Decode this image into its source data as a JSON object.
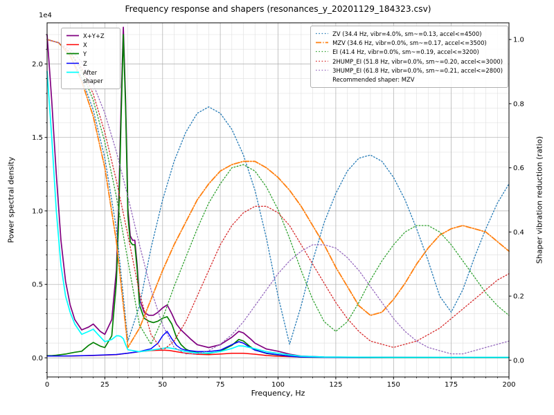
{
  "figure": {
    "title": "Frequency response and shapers (resonances_y_20201129_184323.csv)",
    "xlabel": "Frequency, Hz",
    "ylabel_left": "Power spectral density",
    "ylabel_right": "Shaper vibration reduction (ratio)",
    "left_axis_offset_text": "1e4"
  },
  "chart_data": {
    "type": "line",
    "x_range": [
      0,
      200
    ],
    "x_ticks": [
      0,
      25,
      50,
      75,
      100,
      125,
      150,
      175,
      200
    ],
    "x_tick_labels": [
      "0",
      "25",
      "50",
      "75",
      "100",
      "125",
      "150",
      "175",
      "200"
    ],
    "left_ylim": [
      -1300,
      22800
    ],
    "left_yticks": [
      0,
      5000,
      10000,
      15000,
      20000
    ],
    "left_ytick_labels": [
      "0.0",
      "0.5",
      "1.0",
      "1.5",
      "2.0"
    ],
    "right_ylim": [
      -0.052,
      1.052
    ],
    "right_yticks": [
      0.0,
      0.2,
      0.4,
      0.6,
      0.8,
      1.0
    ],
    "right_ytick_labels": [
      "0.0",
      "0.2",
      "0.4",
      "0.6",
      "0.8",
      "1.0"
    ],
    "grid": {
      "major": true,
      "minor": true,
      "x_minor_step": 5,
      "left_minor_step": 1000,
      "major_color": "#ababab",
      "minor_color": "#dedede"
    },
    "recommended_note": "Recommended shaper: MZV",
    "psd_series": [
      {
        "name": "sum",
        "label": "X+Y+Z",
        "color": "#800080",
        "style": "solid",
        "width": 1.7,
        "axis": "left",
        "x": [
          0,
          2,
          4,
          6,
          8,
          10,
          12,
          15,
          18,
          20,
          23,
          25,
          28,
          30,
          31,
          32,
          33,
          34,
          35,
          36,
          37,
          38,
          39,
          40,
          42,
          44,
          46,
          48,
          50,
          52,
          54,
          56,
          58,
          60,
          62,
          65,
          70,
          75,
          80,
          83,
          85,
          88,
          90,
          95,
          100,
          105,
          110,
          120,
          140,
          170,
          200
        ],
        "y": [
          22000,
          17500,
          12500,
          8000,
          5200,
          3600,
          2600,
          1900,
          2100,
          2300,
          1800,
          1600,
          2600,
          6000,
          10500,
          17000,
          22500,
          17500,
          10200,
          8300,
          8000,
          8000,
          6300,
          4000,
          3100,
          2900,
          2900,
          3100,
          3400,
          3600,
          3000,
          2300,
          1900,
          1600,
          1300,
          900,
          700,
          900,
          1400,
          1800,
          1700,
          1300,
          1000,
          600,
          450,
          250,
          120,
          60,
          40,
          30,
          30
        ]
      },
      {
        "name": "x",
        "label": "X",
        "color": "#ff0000",
        "style": "solid",
        "width": 1.5,
        "axis": "left",
        "x": [
          0,
          10,
          20,
          30,
          35,
          40,
          45,
          50,
          53,
          56,
          60,
          65,
          70,
          75,
          80,
          85,
          90,
          95,
          100,
          110,
          120,
          150,
          200
        ],
        "y": [
          120,
          120,
          160,
          220,
          320,
          420,
          500,
          520,
          500,
          420,
          320,
          240,
          220,
          260,
          310,
          310,
          250,
          160,
          110,
          60,
          40,
          25,
          25
        ]
      },
      {
        "name": "y",
        "label": "Y",
        "color": "#008000",
        "style": "solid",
        "width": 1.7,
        "axis": "left",
        "x": [
          0,
          2,
          4,
          6,
          8,
          10,
          12,
          15,
          18,
          20,
          23,
          25,
          28,
          30,
          31,
          32,
          33,
          34,
          35,
          36,
          37,
          38,
          39,
          40,
          42,
          44,
          46,
          48,
          50,
          52,
          54,
          56,
          58,
          60,
          62,
          65,
          70,
          75,
          80,
          83,
          85,
          88,
          90,
          95,
          100,
          105,
          110,
          120,
          140,
          170,
          200
        ],
        "y": [
          150,
          150,
          180,
          220,
          260,
          320,
          380,
          450,
          850,
          1050,
          800,
          700,
          1500,
          5200,
          9500,
          16000,
          22000,
          17000,
          9700,
          7900,
          7700,
          7700,
          6000,
          3600,
          2700,
          2500,
          2400,
          2500,
          2700,
          2800,
          2300,
          1400,
          900,
          600,
          450,
          350,
          300,
          450,
          850,
          1250,
          1150,
          750,
          550,
          300,
          200,
          120,
          60,
          30,
          20,
          20,
          20
        ]
      },
      {
        "name": "z",
        "label": "Z",
        "color": "#0000ff",
        "style": "solid",
        "width": 1.5,
        "axis": "left",
        "x": [
          0,
          10,
          20,
          30,
          35,
          40,
          45,
          48,
          50,
          52,
          54,
          56,
          58,
          60,
          65,
          70,
          75,
          80,
          83,
          85,
          88,
          90,
          95,
          100,
          105,
          110,
          120,
          150,
          200
        ],
        "y": [
          120,
          130,
          170,
          230,
          320,
          430,
          620,
          1000,
          1500,
          1800,
          1300,
          850,
          620,
          520,
          430,
          430,
          520,
          900,
          1100,
          1000,
          700,
          520,
          320,
          210,
          110,
          60,
          35,
          25,
          25
        ]
      },
      {
        "name": "after-shaper",
        "label": "After shaper",
        "color": "#00ffff",
        "style": "solid",
        "width": 1.7,
        "axis": "left",
        "x": [
          0,
          2,
          4,
          6,
          8,
          10,
          12,
          15,
          18,
          20,
          22,
          25,
          28,
          30,
          31,
          32,
          33,
          34,
          35,
          40,
          45,
          50,
          52,
          55,
          60,
          65,
          70,
          75,
          80,
          83,
          85,
          90,
          95,
          100,
          105,
          110,
          120,
          150,
          200
        ],
        "y": [
          19500,
          15000,
          10000,
          6300,
          4200,
          3100,
          2300,
          1600,
          1800,
          1950,
          1600,
          1100,
          1250,
          1500,
          1500,
          1450,
          1300,
          900,
          550,
          420,
          520,
          640,
          700,
          620,
          430,
          330,
          330,
          430,
          640,
          820,
          800,
          620,
          420,
          310,
          200,
          110,
          60,
          35,
          35
        ]
      }
    ],
    "shaper_series": [
      {
        "name": "zv",
        "label": "ZV (34.4 Hz, vibr=4.0%, sm~=0.13, accel<=4500)",
        "color": "#1f77b4",
        "style": "dotted",
        "width": 1.3,
        "axis": "right",
        "x": [
          0,
          5,
          10,
          15,
          20,
          25,
          30,
          35,
          40,
          45,
          50,
          55,
          60,
          65,
          70,
          75,
          80,
          85,
          90,
          95,
          100,
          105,
          110,
          115,
          120,
          125,
          130,
          135,
          140,
          145,
          150,
          155,
          160,
          165,
          170,
          175,
          180,
          185,
          190,
          195,
          200
        ],
        "y": [
          1.0,
          0.99,
          0.95,
          0.88,
          0.78,
          0.63,
          0.41,
          0.06,
          0.17,
          0.35,
          0.5,
          0.62,
          0.71,
          0.77,
          0.79,
          0.77,
          0.72,
          0.64,
          0.53,
          0.38,
          0.2,
          0.05,
          0.17,
          0.31,
          0.43,
          0.52,
          0.59,
          0.63,
          0.64,
          0.62,
          0.57,
          0.5,
          0.41,
          0.31,
          0.2,
          0.15,
          0.22,
          0.32,
          0.41,
          0.49,
          0.55
        ]
      },
      {
        "name": "mzv",
        "label": "MZV (34.6 Hz, vibr=0.0%, sm~=0.17, accel<=3500)",
        "color": "#ff7f0e",
        "style": "dashdot",
        "width": 1.8,
        "axis": "right",
        "x": [
          0,
          5,
          10,
          15,
          20,
          25,
          30,
          35,
          40,
          45,
          50,
          55,
          60,
          65,
          70,
          75,
          80,
          85,
          90,
          95,
          100,
          105,
          110,
          115,
          120,
          125,
          130,
          135,
          140,
          145,
          150,
          155,
          160,
          165,
          170,
          175,
          180,
          185,
          190,
          195,
          200
        ],
        "y": [
          1.0,
          0.99,
          0.95,
          0.87,
          0.76,
          0.6,
          0.37,
          0.04,
          0.1,
          0.19,
          0.28,
          0.36,
          0.43,
          0.5,
          0.55,
          0.59,
          0.61,
          0.62,
          0.62,
          0.6,
          0.57,
          0.53,
          0.48,
          0.42,
          0.36,
          0.29,
          0.23,
          0.17,
          0.14,
          0.15,
          0.19,
          0.24,
          0.3,
          0.35,
          0.39,
          0.41,
          0.42,
          0.41,
          0.4,
          0.37,
          0.34
        ]
      },
      {
        "name": "ei",
        "label": "EI (41.4 Hz, vibr=0.0%, sm~=0.19, accel<=3200)",
        "color": "#2ca02c",
        "style": "dotted",
        "width": 1.3,
        "axis": "right",
        "x": [
          0,
          5,
          10,
          15,
          20,
          25,
          30,
          35,
          40,
          45,
          50,
          55,
          60,
          65,
          70,
          75,
          80,
          85,
          90,
          95,
          100,
          105,
          110,
          115,
          120,
          125,
          130,
          135,
          140,
          145,
          150,
          155,
          160,
          165,
          170,
          175,
          180,
          185,
          190,
          195,
          200
        ],
        "y": [
          1.0,
          0.99,
          0.96,
          0.9,
          0.81,
          0.68,
          0.51,
          0.31,
          0.11,
          0.05,
          0.13,
          0.23,
          0.32,
          0.41,
          0.49,
          0.55,
          0.6,
          0.61,
          0.59,
          0.54,
          0.47,
          0.38,
          0.28,
          0.19,
          0.12,
          0.09,
          0.12,
          0.18,
          0.25,
          0.31,
          0.36,
          0.4,
          0.42,
          0.42,
          0.4,
          0.36,
          0.31,
          0.26,
          0.21,
          0.17,
          0.14
        ]
      },
      {
        "name": "2hump-ei",
        "label": "2HUMP_EI (51.8 Hz, vibr=0.0%, sm~=0.20, accel<=3000)",
        "color": "#d62728",
        "style": "dotted",
        "width": 1.3,
        "axis": "right",
        "x": [
          0,
          5,
          10,
          15,
          20,
          25,
          30,
          35,
          40,
          45,
          50,
          55,
          60,
          65,
          70,
          75,
          80,
          85,
          90,
          95,
          100,
          105,
          110,
          115,
          120,
          125,
          130,
          135,
          140,
          145,
          150,
          155,
          160,
          165,
          170,
          175,
          180,
          185,
          190,
          195,
          200
        ],
        "y": [
          1.0,
          0.99,
          0.96,
          0.91,
          0.83,
          0.71,
          0.56,
          0.39,
          0.21,
          0.08,
          0.03,
          0.06,
          0.12,
          0.2,
          0.28,
          0.36,
          0.42,
          0.46,
          0.48,
          0.48,
          0.46,
          0.42,
          0.36,
          0.3,
          0.24,
          0.18,
          0.13,
          0.09,
          0.06,
          0.05,
          0.04,
          0.05,
          0.06,
          0.08,
          0.1,
          0.13,
          0.16,
          0.19,
          0.22,
          0.25,
          0.27
        ]
      },
      {
        "name": "3hump-ei",
        "label": "3HUMP_EI (61.8 Hz, vibr=0.0%, sm~=0.21, accel<=2800)",
        "color": "#9467bd",
        "style": "dotted",
        "width": 1.3,
        "axis": "right",
        "x": [
          0,
          5,
          10,
          15,
          20,
          25,
          30,
          35,
          40,
          45,
          50,
          55,
          60,
          65,
          70,
          75,
          80,
          85,
          90,
          95,
          100,
          105,
          110,
          115,
          120,
          125,
          130,
          135,
          140,
          145,
          150,
          155,
          160,
          165,
          170,
          175,
          180,
          185,
          190,
          195,
          200
        ],
        "y": [
          1.0,
          0.99,
          0.97,
          0.93,
          0.86,
          0.77,
          0.65,
          0.51,
          0.36,
          0.22,
          0.11,
          0.04,
          0.02,
          0.02,
          0.03,
          0.05,
          0.08,
          0.12,
          0.17,
          0.22,
          0.27,
          0.31,
          0.34,
          0.36,
          0.36,
          0.35,
          0.32,
          0.28,
          0.23,
          0.18,
          0.13,
          0.09,
          0.06,
          0.04,
          0.03,
          0.02,
          0.02,
          0.03,
          0.04,
          0.05,
          0.06
        ]
      }
    ]
  }
}
